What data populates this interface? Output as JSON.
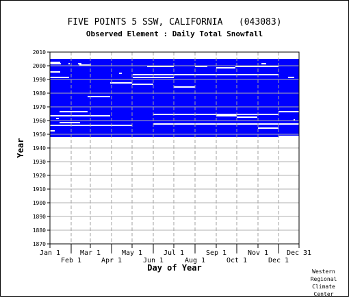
{
  "chart_data": {
    "type": "heatmap",
    "title": "FIVE POINTS 5 SSW, CALIFORNIA   (043083)",
    "subtitle": "Observed Element : Daily Total Snowfall",
    "xlabel": "Day of Year",
    "ylabel": "Year",
    "ylim": [
      1870,
      2010
    ],
    "y_ticks": [
      1870,
      1880,
      1890,
      1900,
      1910,
      1920,
      1930,
      1940,
      1950,
      1960,
      1970,
      1980,
      1990,
      2000,
      2010
    ],
    "x_ticks_top": [
      "Jan 1",
      "Mar 1",
      "May 1",
      "Jul 1",
      "Sep 1",
      "Nov 1",
      "Dec 31"
    ],
    "x_ticks_top_day": [
      1,
      60,
      121,
      182,
      244,
      305,
      365
    ],
    "x_ticks_bottom": [
      "Feb 1",
      "Apr 1",
      "Jun 1",
      "Aug 1",
      "Oct 1",
      "Dec 1"
    ],
    "x_ticks_bottom_day": [
      32,
      91,
      152,
      213,
      274,
      335
    ],
    "grid": true,
    "data_present_color": "#0000ff",
    "missing_color": "#ffffff",
    "coverage": {
      "start_year": 1948,
      "end_year": 2004
    },
    "missing_segments": [
      {
        "year": 2002,
        "start_day": 1,
        "end_day": 16
      },
      {
        "year": 2001,
        "start_day": 1,
        "end_day": 17
      },
      {
        "year": 2001,
        "start_day": 28,
        "end_day": 30
      },
      {
        "year": 2001,
        "start_day": 42,
        "end_day": 47
      },
      {
        "year": 2001,
        "start_day": 310,
        "end_day": 317
      },
      {
        "year": 2000,
        "start_day": 44,
        "end_day": 61
      },
      {
        "year": 2000,
        "start_day": 49,
        "end_day": 57
      },
      {
        "year": 1999,
        "start_day": 143,
        "end_day": 182
      },
      {
        "year": 1999,
        "start_day": 213,
        "end_day": 231
      },
      {
        "year": 1999,
        "start_day": 272,
        "end_day": 335
      },
      {
        "year": 1998,
        "start_day": 244,
        "end_day": 272
      },
      {
        "year": 1995,
        "start_day": 1,
        "end_day": 16
      },
      {
        "year": 1994,
        "start_day": 102,
        "end_day": 106
      },
      {
        "year": 1993,
        "start_day": 122,
        "end_day": 335
      },
      {
        "year": 1991,
        "start_day": 1,
        "end_day": 29
      },
      {
        "year": 1991,
        "start_day": 122,
        "end_day": 182
      },
      {
        "year": 1991,
        "start_day": 349,
        "end_day": 358
      },
      {
        "year": 1987,
        "start_day": 89,
        "end_day": 121
      },
      {
        "year": 1986,
        "start_day": 121,
        "end_day": 152
      },
      {
        "year": 1984,
        "start_day": 182,
        "end_day": 213
      },
      {
        "year": 1977,
        "start_day": 56,
        "end_day": 89
      },
      {
        "year": 1966,
        "start_day": 15,
        "end_day": 56
      },
      {
        "year": 1966,
        "start_day": 335,
        "end_day": 365
      },
      {
        "year": 1964,
        "start_day": 152,
        "end_day": 335
      },
      {
        "year": 1963,
        "start_day": 1,
        "end_day": 89
      },
      {
        "year": 1963,
        "start_day": 244,
        "end_day": 274
      },
      {
        "year": 1962,
        "start_day": 274,
        "end_day": 304
      },
      {
        "year": 1961,
        "start_day": 10,
        "end_day": 14
      },
      {
        "year": 1960,
        "start_day": 357,
        "end_day": 358
      },
      {
        "year": 1958,
        "start_day": 15,
        "end_day": 45
      },
      {
        "year": 1957,
        "start_day": 152,
        "end_day": 365
      },
      {
        "year": 1956,
        "start_day": 1,
        "end_day": 121
      },
      {
        "year": 1954,
        "start_day": 305,
        "end_day": 335
      },
      {
        "year": 1952,
        "start_day": 1,
        "end_day": 8
      },
      {
        "year": 1948,
        "start_day": 335,
        "end_day": 365
      }
    ]
  },
  "credit": [
    "Western",
    "Regional",
    "Climate",
    "Center"
  ]
}
